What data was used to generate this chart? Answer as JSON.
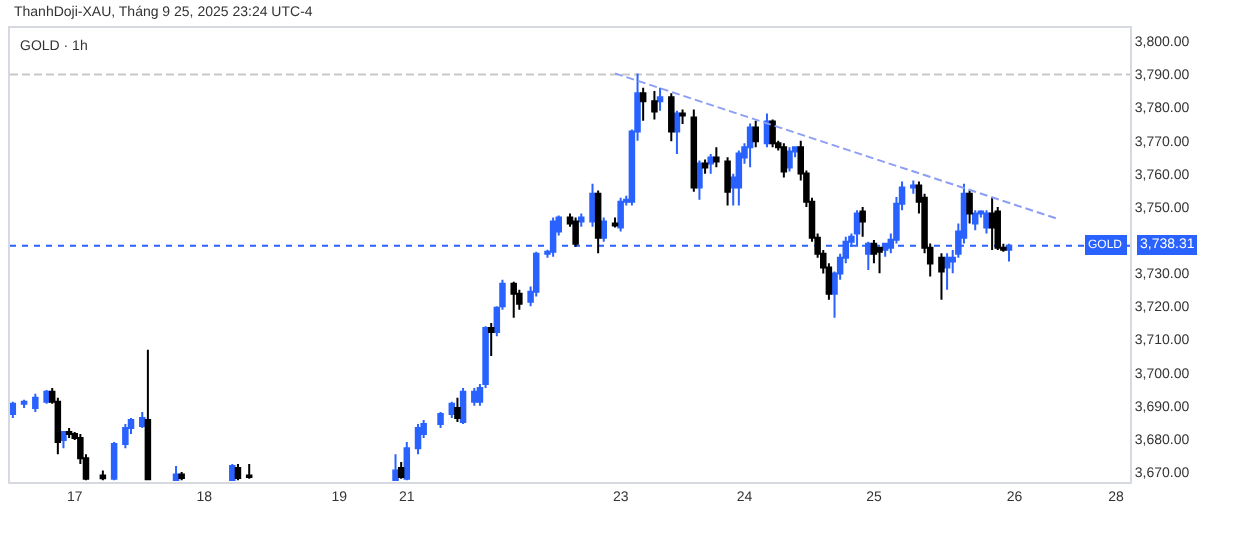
{
  "chart_data": {
    "type": "candlestick",
    "title": "GOLD · 1h",
    "subtitle": "ThanhDoji-XAU, Tháng 9 25, 2025 23:24 UTC-4",
    "categories": [
      null,
      null,
      null,
      null,
      null,
      null,
      null,
      null,
      null,
      null,
      null,
      "17",
      null,
      null,
      null,
      null,
      null,
      null,
      null,
      null,
      null,
      null,
      null,
      null,
      null,
      null,
      null,
      null,
      null,
      null,
      null,
      null,
      null,
      null,
      "18",
      null,
      null,
      null,
      null,
      null,
      null,
      null,
      null,
      null,
      null,
      null,
      null,
      null,
      null,
      null,
      null,
      null,
      null,
      null,
      null,
      null,
      null,
      null,
      "19",
      null,
      null,
      null,
      null,
      null,
      null,
      null,
      null,
      null,
      null,
      null,
      "21",
      null,
      null,
      null,
      null,
      null,
      null,
      null,
      null,
      null,
      null,
      null,
      null,
      null,
      null,
      null,
      null,
      null,
      null,
      null,
      null,
      null,
      null,
      null,
      null,
      null,
      null,
      null,
      null,
      null,
      null,
      null,
      null,
      null,
      null,
      null,
      null,
      null,
      "23",
      null,
      null,
      null,
      null,
      null,
      null,
      null,
      null,
      null,
      null,
      null,
      null,
      null,
      null,
      null,
      null,
      null,
      null,
      null,
      null,
      null,
      "24",
      null,
      null,
      null,
      null,
      null,
      null,
      null,
      null,
      null,
      null,
      null,
      null,
      null,
      null,
      null,
      null,
      null,
      null,
      null,
      null,
      null,
      null,
      "25",
      null,
      null,
      null,
      null,
      null,
      null,
      null,
      null,
      null,
      null,
      null,
      null,
      null,
      null,
      null,
      null,
      null,
      null,
      null,
      null,
      null,
      null,
      null,
      null,
      "26",
      null,
      null,
      null,
      null,
      null,
      null,
      null,
      null,
      null,
      null,
      null,
      null,
      null,
      null,
      null,
      null,
      null,
      "28",
      null,
      null
    ],
    "ylim": [
      3667,
      3804
    ],
    "yticks": [
      {
        "value": 3670,
        "label": "3,670.00"
      },
      {
        "value": 3680,
        "label": "3,680.00"
      },
      {
        "value": 3690,
        "label": "3,690.00"
      },
      {
        "value": 3700,
        "label": "3,700.00"
      },
      {
        "value": 3710,
        "label": "3,710.00"
      },
      {
        "value": 3720,
        "label": "3,720.00"
      },
      {
        "value": 3730,
        "label": "3,730.00"
      },
      {
        "value": 3750,
        "label": "3,750.00"
      },
      {
        "value": 3760,
        "label": "3,760.00"
      },
      {
        "value": 3770,
        "label": "3,770.00"
      },
      {
        "value": 3780,
        "label": "3,780.00"
      },
      {
        "value": 3790,
        "label": "3,790.00"
      },
      {
        "value": 3800,
        "label": "3,800.00"
      }
    ],
    "series": [
      {
        "ohlc": [
          [
            3687.5,
            3691.2,
            3686.3,
            3690.6
          ],
          null,
          [
            3690.6,
            3691.8,
            3689.3,
            3691.2
          ],
          null,
          [
            3689.3,
            3693.6,
            3688.1,
            3692.4
          ],
          null,
          [
            3691.2,
            3694.8,
            3690.6,
            3694.2
          ],
          [
            3694.2,
            3695.4,
            3690.6,
            3691.2
          ],
          [
            3691.2,
            3692.4,
            3675.4,
            3679.1
          ],
          [
            3679.7,
            3682.1,
            3677.2,
            3682.1
          ],
          [
            3682.1,
            3683.3,
            3680.3,
            3681.5
          ],
          [
            3681.5,
            3682.1,
            3679.7,
            3680.3
          ],
          [
            3680.3,
            3681.5,
            3672.4,
            3674.2
          ],
          [
            3674.2,
            3675.4,
            3667.5,
            3668
          ],
          null,
          null,
          [
            3669,
            3670.5,
            3667.5,
            3668.1
          ],
          null,
          [
            3668,
            3679.1,
            3667.5,
            3678.5
          ],
          null,
          [
            3678.5,
            3684.5,
            3677.2,
            3683.3
          ],
          [
            3683.3,
            3686.3,
            3681.5,
            3685.7
          ],
          null,
          [
            3683.9,
            3688.1,
            3683.3,
            3686.3
          ],
          [
            3685.7,
            3706.9,
            3667.5,
            3667.8
          ],
          null,
          null,
          null,
          null,
          [
            3667.6,
            3671.8,
            3667.5,
            3669.3
          ],
          [
            3669.3,
            3670,
            3667.5,
            3668.2
          ],
          null,
          null,
          null,
          null,
          null,
          null,
          null,
          null,
          [
            3667.6,
            3672.4,
            3667.5,
            3671.8
          ],
          [
            3671.2,
            3672.4,
            3667.5,
            3668.2
          ],
          null,
          [
            3669,
            3672.4,
            3668,
            3668.5
          ],
          null,
          null,
          null,
          null,
          null,
          null,
          null,
          null,
          null,
          null,
          null,
          null,
          null,
          null,
          null,
          null,
          null,
          null,
          null,
          null,
          null,
          null,
          null,
          null,
          null,
          [
            3667.6,
            3675.4,
            3667.5,
            3670.5
          ],
          [
            3671.2,
            3673,
            3668,
            3668.5
          ],
          [
            3668,
            3679.1,
            3667.5,
            3677.2
          ],
          null,
          [
            3677.2,
            3684.5,
            3675.4,
            3683.3
          ],
          [
            3681.5,
            3685.7,
            3680.3,
            3684.5
          ],
          null,
          null,
          [
            3684.5,
            3688.1,
            3683.3,
            3687.5
          ],
          null,
          [
            3687.5,
            3691.2,
            3686.3,
            3690.6
          ],
          [
            3689.3,
            3692.4,
            3685.1,
            3686.3
          ],
          [
            3685.1,
            3695.4,
            3684.5,
            3694.2
          ],
          null,
          [
            3691.2,
            3695.4,
            3690,
            3694.2
          ],
          [
            3691.2,
            3696.6,
            3690,
            3695.4
          ],
          [
            3696.6,
            3714,
            3695.4,
            3713.5
          ],
          [
            3713.5,
            3715,
            3705,
            3712.3
          ],
          [
            3712.3,
            3720,
            3711,
            3719.6
          ],
          [
            3720,
            3728,
            3719,
            3726.8
          ],
          null,
          [
            3726.8,
            3727.4,
            3716.6,
            3723.8
          ],
          [
            3723.8,
            3725,
            3719,
            3720.8
          ],
          null,
          [
            3721.4,
            3726,
            3720,
            3724.4
          ],
          [
            3724.4,
            3736.5,
            3723,
            3735.9
          ],
          null,
          [
            3735.9,
            3737.1,
            3734.7,
            3736.5
          ],
          [
            3736.5,
            3746.8,
            3735,
            3745.6
          ],
          [
            3742.6,
            3747.4,
            3741.4,
            3746.8
          ],
          null,
          [
            3746.8,
            3748,
            3744,
            3745
          ],
          [
            3745.6,
            3746.8,
            3738,
            3738.9
          ],
          [
            3745.6,
            3748,
            3744,
            3746.8
          ],
          null,
          [
            3745.6,
            3757,
            3744,
            3754
          ],
          [
            3754,
            3755,
            3736,
            3740.7
          ],
          [
            3740.7,
            3746.8,
            3739.5,
            3745.6
          ],
          null,
          [
            3745,
            3746.8,
            3743.8,
            3744.4
          ],
          [
            3743.8,
            3752.8,
            3742.6,
            3751.6
          ],
          [
            3751.6,
            3753.4,
            3750.4,
            3752.2
          ],
          [
            3751.6,
            3773.4,
            3750.4,
            3772.8
          ],
          [
            3772.8,
            3790.3,
            3770,
            3784.3
          ],
          [
            3784.3,
            3786,
            3776,
            3781.9
          ],
          null,
          [
            3781.9,
            3785,
            3776.4,
            3778.8
          ],
          [
            3781.9,
            3786,
            3779,
            3783.1
          ],
          null,
          [
            3783.1,
            3784.3,
            3769.8,
            3772.8
          ],
          [
            3772.8,
            3779,
            3766,
            3778.2
          ],
          [
            3778.2,
            3779.4,
            3775,
            3777.6
          ],
          null,
          [
            3777,
            3779.4,
            3754.6,
            3755.9
          ],
          [
            3755.9,
            3764,
            3752.2,
            3763.1
          ],
          [
            3763.1,
            3764.3,
            3760,
            3761.9
          ],
          [
            3763.1,
            3766,
            3760,
            3764.9
          ],
          [
            3764.9,
            3768,
            3762,
            3763.7
          ],
          null,
          [
            3763.7,
            3765,
            3750.4,
            3754.6
          ],
          [
            3755.9,
            3760,
            3750.4,
            3758.9
          ],
          [
            3755.9,
            3767,
            3750.4,
            3766.1
          ],
          [
            3764.9,
            3769.2,
            3763,
            3768
          ],
          [
            3768,
            3775.2,
            3762,
            3774
          ],
          [
            3774,
            3776,
            3768,
            3769.8
          ],
          null,
          [
            3769.2,
            3778.2,
            3768,
            3775.8
          ],
          [
            3775.8,
            3776.4,
            3768,
            3769.2
          ],
          [
            3769.2,
            3770,
            3767,
            3768
          ],
          [
            3768,
            3769.2,
            3758.9,
            3760.7
          ],
          [
            3761.9,
            3768,
            3760.7,
            3766.7
          ],
          [
            3766.7,
            3768,
            3765,
            3768
          ],
          [
            3768,
            3770,
            3758,
            3760.1
          ],
          [
            3760.1,
            3761,
            3750,
            3751.6
          ],
          [
            3751.6,
            3752.8,
            3739.5,
            3740.7
          ],
          [
            3740.7,
            3742,
            3734.7,
            3735.9
          ],
          [
            3735.9,
            3737,
            3729.9,
            3731.7
          ],
          [
            3731.7,
            3733,
            3722,
            3723.8
          ],
          [
            3723.8,
            3730.5,
            3716.6,
            3729.9
          ],
          [
            3729.9,
            3735.9,
            3728,
            3734.7
          ],
          [
            3734.7,
            3741,
            3733,
            3739.5
          ],
          [
            3739.5,
            3742,
            3738,
            3741
          ],
          [
            3742,
            3749,
            3738,
            3748
          ],
          [
            3748.6,
            3750,
            3741,
            3745.6
          ],
          [
            3735.9,
            3739.5,
            3731,
            3738.9
          ],
          [
            3738.9,
            3740,
            3733,
            3735.9
          ],
          [
            3737.7,
            3738,
            3730,
            3736.5
          ],
          [
            3737.1,
            3739,
            3735,
            3738.9
          ],
          [
            3737.7,
            3742,
            3736,
            3740.1
          ],
          [
            3740.1,
            3753,
            3739,
            3751
          ],
          [
            3751,
            3757.7,
            3749,
            3755.9
          ],
          null,
          [
            3755.9,
            3758,
            3754,
            3756.5
          ],
          [
            3756.5,
            3757.7,
            3748,
            3751.6
          ],
          [
            3752.8,
            3754,
            3736,
            3737.7
          ],
          [
            3737.7,
            3739,
            3729,
            3732.9
          ],
          null,
          [
            3734.7,
            3736,
            3722,
            3730.5
          ],
          [
            3731.7,
            3736,
            3725,
            3734.7
          ],
          [
            3733.5,
            3737,
            3730,
            3734.7
          ],
          [
            3735.9,
            3745,
            3734.7,
            3742.6
          ],
          [
            3740.7,
            3757,
            3739,
            3754
          ],
          [
            3754,
            3755,
            3745,
            3748
          ],
          [
            3745,
            3749,
            3743,
            3748
          ],
          [
            3748,
            3749,
            3746.8,
            3748.6
          ],
          [
            3743.8,
            3749,
            3742,
            3748
          ],
          [
            3748,
            3753,
            3737,
            3743.8
          ],
          [
            3748.6,
            3750,
            3737,
            3737.7
          ],
          [
            3737.7,
            3738.9,
            3736.5,
            3737.1
          ],
          [
            3737.1,
            3738.9,
            3733.5,
            3738.31
          ],
          null,
          null,
          null,
          null,
          null,
          null,
          null,
          null,
          null,
          null,
          null,
          null,
          null,
          null,
          null,
          null,
          null,
          null,
          null,
          null,
          null
        ],
        "colors": [
          "#2962ff",
          null,
          "#2962ff",
          null,
          "#2962ff",
          null,
          "#2962ff",
          "#000000",
          "#000000",
          "#2962ff",
          "#000000",
          "#000000",
          "#000000",
          "#000000",
          null,
          null,
          "#000000",
          null,
          "#2962ff",
          null,
          "#2962ff",
          "#2962ff",
          null,
          "#2962ff",
          "#000000",
          null,
          null,
          null,
          null,
          "#2962ff",
          "#000000",
          null,
          null,
          null,
          null,
          null,
          null,
          null,
          null,
          "#2962ff",
          "#000000",
          null,
          "#000000",
          null,
          null,
          null,
          null,
          null,
          null,
          null,
          null,
          null,
          null,
          null,
          null,
          null,
          null,
          null,
          null,
          null,
          null,
          null,
          null,
          null,
          null,
          null,
          null,
          null,
          "#2962ff",
          "#000000",
          "#2962ff",
          null,
          "#2962ff",
          "#2962ff",
          null,
          null,
          "#2962ff",
          null,
          "#2962ff",
          "#000000",
          "#2962ff",
          null,
          "#2962ff",
          "#2962ff",
          "#2962ff",
          "#000000",
          "#2962ff",
          "#2962ff",
          null,
          "#000000",
          "#000000",
          null,
          "#2962ff",
          "#2962ff",
          null,
          "#2962ff",
          "#2962ff",
          "#2962ff",
          null,
          "#000000",
          "#000000",
          "#2962ff",
          null,
          "#2962ff",
          "#000000",
          "#2962ff",
          null,
          "#000000",
          "#2962ff",
          "#2962ff",
          "#2962ff",
          "#2962ff",
          "#000000",
          null,
          "#000000",
          "#2962ff",
          null,
          "#000000",
          "#2962ff",
          "#000000",
          null,
          "#000000",
          "#2962ff",
          "#000000",
          "#2962ff",
          "#000000",
          null,
          "#000000",
          "#2962ff",
          "#2962ff",
          "#2962ff",
          "#2962ff",
          "#000000",
          null,
          "#2962ff",
          "#000000",
          "#000000",
          "#000000",
          "#2962ff",
          "#2962ff",
          "#000000",
          "#000000",
          "#000000",
          "#000000",
          "#000000",
          "#000000",
          "#2962ff",
          "#2962ff",
          "#2962ff",
          "#2962ff",
          "#2962ff",
          "#000000",
          "#2962ff",
          "#000000",
          "#000000",
          "#2962ff",
          "#2962ff",
          "#2962ff",
          "#2962ff",
          null,
          "#2962ff",
          "#000000",
          "#000000",
          "#000000",
          null,
          "#000000",
          "#2962ff",
          "#2962ff",
          "#2962ff",
          "#2962ff",
          "#000000",
          "#2962ff",
          "#2962ff",
          "#2962ff",
          "#000000",
          "#000000",
          "#000000",
          "#2962ff",
          null,
          null,
          null,
          null,
          null,
          null,
          null,
          null,
          null,
          null,
          null,
          null,
          null,
          null,
          null,
          null,
          null,
          null,
          null,
          null,
          null
        ]
      },
      {
        "type": "line",
        "color": "#8c9ef5",
        "line_style": "dashed",
        "values": [
          null,
          null,
          null,
          null,
          null,
          null,
          null,
          null,
          null,
          null,
          null,
          null,
          null,
          null,
          null,
          null,
          null,
          null,
          null,
          null,
          null,
          null,
          null,
          null,
          null,
          null,
          null,
          null,
          null,
          null,
          null,
          null,
          null,
          null,
          null,
          null,
          null,
          null,
          null,
          null,
          null,
          null,
          null,
          null,
          null,
          null,
          null,
          null,
          null,
          null,
          null,
          null,
          null,
          null,
          null,
          null,
          null,
          null,
          null,
          null,
          null,
          null,
          null,
          null,
          null,
          null,
          null,
          null,
          null,
          null,
          null,
          null,
          null,
          null,
          null,
          null,
          null,
          null,
          null,
          null,
          null,
          null,
          null,
          null,
          null,
          null,
          null,
          null,
          null,
          null,
          null,
          null,
          null,
          null,
          null,
          null,
          null,
          null,
          null,
          null,
          null,
          null,
          null,
          null,
          null,
          null,
          null,
          3790.3,
          null,
          null,
          null,
          null,
          null,
          null,
          null,
          null,
          null,
          null,
          null,
          null,
          null,
          null,
          null,
          null,
          null,
          null,
          null,
          null,
          null,
          null,
          null,
          null,
          null,
          null,
          null,
          null,
          null,
          null,
          null,
          null,
          null,
          null,
          null,
          null,
          null,
          null,
          null,
          null,
          null,
          null,
          null,
          null,
          null,
          null,
          null,
          null,
          null,
          null,
          null,
          null,
          null,
          null,
          null,
          null,
          null,
          null,
          null,
          null,
          null,
          null,
          null,
          null,
          null,
          null,
          null,
          null,
          null,
          null,
          null,
          null,
          null,
          null,
          null,
          null,
          null,
          null,
          3746.2,
          null,
          null,
          null,
          null,
          null,
          null,
          null,
          null,
          null,
          null,
          null,
          null
        ]
      }
    ],
    "ref_lines": [
      {
        "axis": "y",
        "value": 3790,
        "color": "#c8c8c8",
        "line_style": "dashed"
      },
      {
        "axis": "y",
        "value": 3738.31,
        "label": "3,738.31",
        "color": "#2962ff",
        "line_style": "dotted"
      }
    ],
    "annotations": [
      {
        "text": "GOLD",
        "y": 3738.31
      }
    ]
  }
}
